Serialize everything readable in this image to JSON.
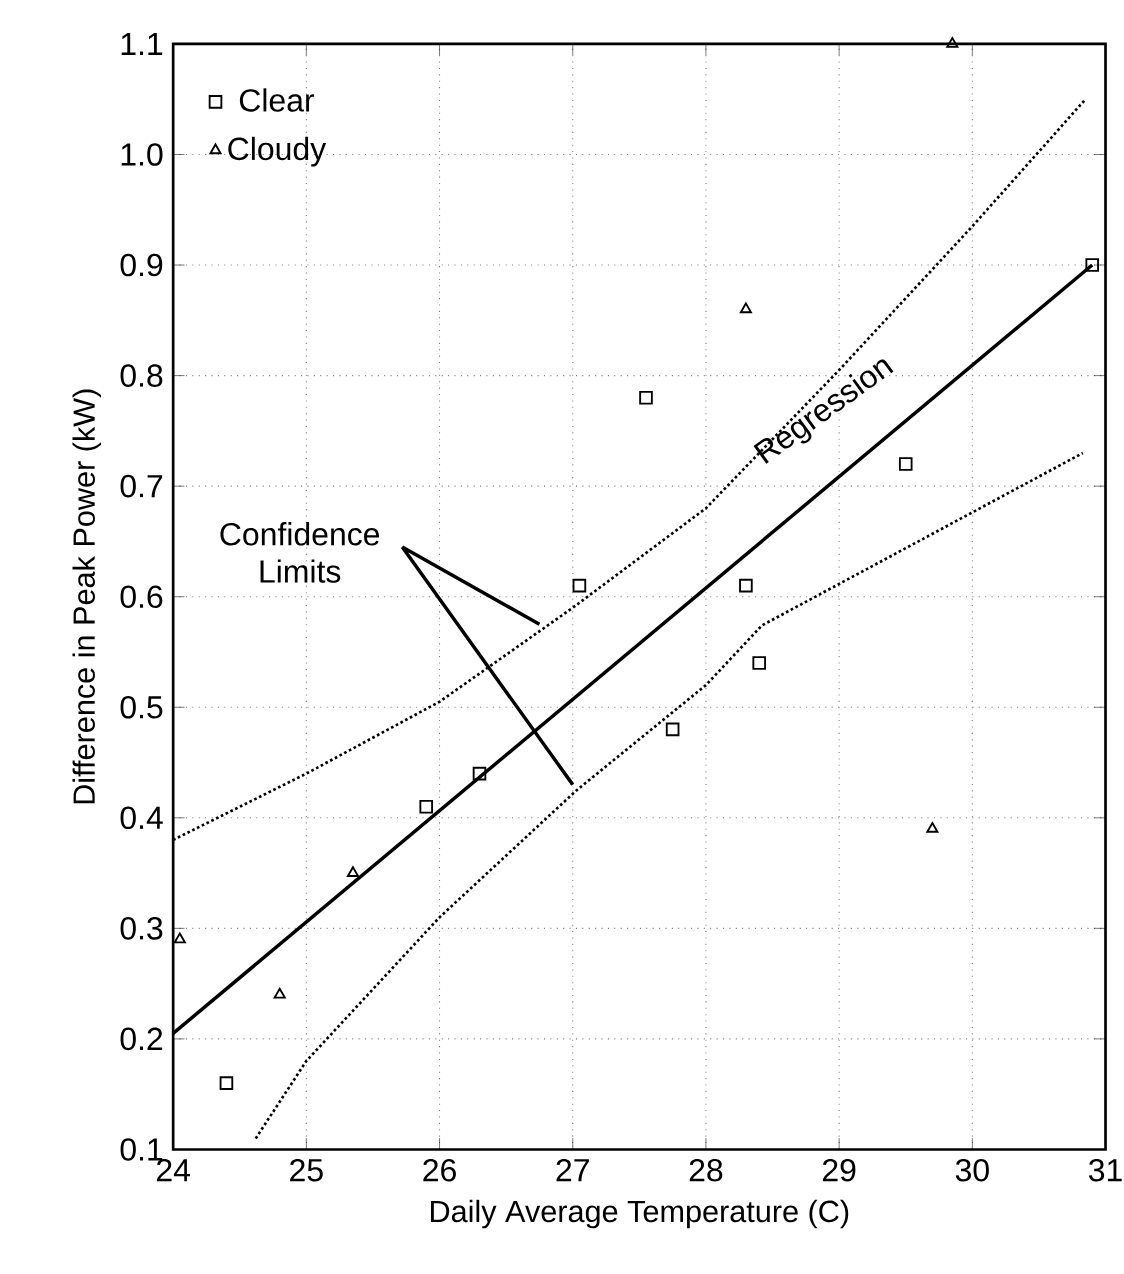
{
  "chart_data": {
    "type": "scatter",
    "xlabel": "Daily Average Temperature (C)",
    "ylabel": "Difference in Peak Power (kW)",
    "xlim": [
      24,
      31
    ],
    "ylim": [
      0.1,
      1.1
    ],
    "xticks": [
      24,
      25,
      26,
      27,
      28,
      29,
      30,
      31
    ],
    "yticks": [
      {
        "value": 0.1,
        "label": "0.1"
      },
      {
        "value": 0.2,
        "label": "0.2"
      },
      {
        "value": 0.3,
        "label": "0.3"
      },
      {
        "value": 0.4,
        "label": "0.4"
      },
      {
        "value": 0.5,
        "label": "0.5"
      },
      {
        "value": 0.6,
        "label": "0.6"
      },
      {
        "value": 0.7,
        "label": "0.7"
      },
      {
        "value": 0.8,
        "label": "0.8"
      },
      {
        "value": 0.9,
        "label": "0.9"
      },
      {
        "value": 1.0,
        "label": "1.0"
      },
      {
        "value": 1.1,
        "label": "1.1"
      }
    ],
    "grid": true,
    "legend": "top left",
    "series": [
      {
        "name": "Clear",
        "color": "#000000",
        "marker": "square",
        "x": [
          24.4,
          25.9,
          26.3,
          27.05,
          27.55,
          27.75,
          28.3,
          28.4,
          29.5,
          30.9
        ],
        "values": [
          0.16,
          0.41,
          0.44,
          0.61,
          0.78,
          0.48,
          0.61,
          0.54,
          0.72,
          0.9
        ]
      },
      {
        "name": "Cloudy",
        "color": "#000000",
        "marker": "triangle",
        "x": [
          24.05,
          24.8,
          25.35,
          28.3,
          29.7,
          29.85
        ],
        "values": [
          0.29,
          0.24,
          0.35,
          0.86,
          0.39,
          1.1
        ]
      },
      {
        "type": "line",
        "color": "#000000",
        "marker": "none",
        "line_style": "solid",
        "x": [
          24,
          30.9
        ],
        "values": [
          0.205,
          0.9
        ]
      },
      {
        "type": "line",
        "color": "#000000",
        "marker": "none",
        "line_style": "dotted",
        "x": [
          24,
          25,
          26,
          27,
          28,
          29,
          30,
          30.85
        ],
        "values": [
          0.38,
          0.44,
          0.505,
          0.59,
          0.68,
          0.805,
          0.935,
          1.05
        ]
      },
      {
        "type": "line",
        "color": "#000000",
        "marker": "none",
        "line_style": "dotted",
        "x": [
          24.62,
          25,
          26,
          27.03,
          28,
          28.42,
          30.83
        ],
        "values": [
          0.11,
          0.18,
          0.31,
          0.425,
          0.52,
          0.574,
          0.73
        ]
      }
    ],
    "annotations": [
      "Regression",
      "Confidence Limits"
    ]
  }
}
